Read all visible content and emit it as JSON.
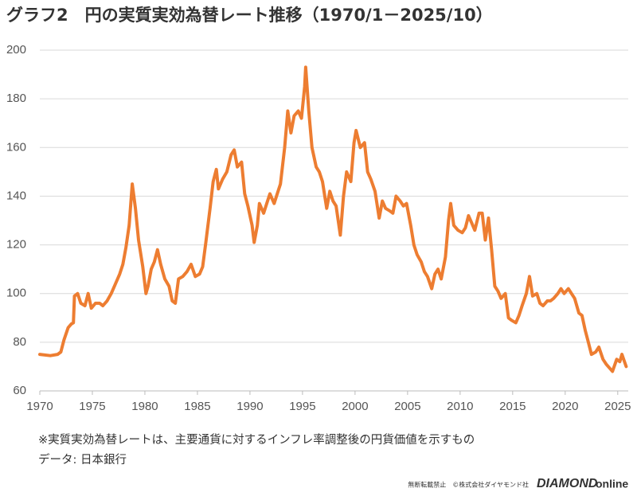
{
  "chart_data": {
    "type": "line",
    "title": "グラフ2　円の実質実効為替レート推移（1970/1－2025/10）",
    "notes": [
      "※実質実効為替レートは、主要通貨に対するインフレ率調整後の円貨価値を示すもの",
      "データ: 日本銀行"
    ],
    "color": "#ed7d31",
    "grid": true,
    "xlim": [
      1970,
      2026
    ],
    "xticks": [
      1970,
      1975,
      1980,
      1985,
      1990,
      1995,
      2000,
      2005,
      2010,
      2015,
      2020,
      2025
    ],
    "ylim": [
      60,
      200
    ],
    "yticks": [
      60,
      80,
      100,
      120,
      140,
      160,
      180,
      200
    ],
    "x": [
      1970,
      1971,
      1971.7,
      1972,
      1972.3,
      1972.7,
      1973,
      1973.2,
      1973.3,
      1973.6,
      1973.9,
      1974.3,
      1974.6,
      1974.9,
      1975.3,
      1975.7,
      1976,
      1976.4,
      1976.8,
      1977.2,
      1977.6,
      1977.9,
      1978.2,
      1978.5,
      1978.8,
      1979.1,
      1979.4,
      1979.8,
      1980.1,
      1980.3,
      1980.6,
      1980.9,
      1981.2,
      1981.5,
      1981.9,
      1982.3,
      1982.6,
      1982.9,
      1983.2,
      1983.6,
      1984,
      1984.4,
      1984.8,
      1985.2,
      1985.5,
      1985.8,
      1986.2,
      1986.5,
      1986.8,
      1987,
      1987.4,
      1987.8,
      1988.2,
      1988.5,
      1988.8,
      1989.2,
      1989.5,
      1989.8,
      1990.2,
      1990.4,
      1990.7,
      1990.9,
      1991.3,
      1991.6,
      1991.9,
      1992.3,
      1992.6,
      1992.9,
      1993.3,
      1993.6,
      1993.9,
      1994.2,
      1994.6,
      1994.9,
      1995.2,
      1995.3,
      1995.6,
      1995.9,
      1996.3,
      1996.6,
      1996.9,
      1997.3,
      1997.6,
      1997.9,
      1998.2,
      1998.6,
      1998.9,
      1999.2,
      1999.6,
      1999.9,
      2000.1,
      2000.5,
      2000.9,
      2001.2,
      2001.5,
      2001.9,
      2002.3,
      2002.6,
      2002.9,
      2003.3,
      2003.6,
      2003.9,
      2004.3,
      2004.6,
      2004.9,
      2005.3,
      2005.6,
      2005.9,
      2006.3,
      2006.6,
      2006.9,
      2007.3,
      2007.6,
      2007.9,
      2008.2,
      2008.6,
      2008.9,
      2009.1,
      2009.4,
      2009.8,
      2010.2,
      2010.5,
      2010.8,
      2011.1,
      2011.4,
      2011.8,
      2012.1,
      2012.4,
      2012.7,
      2013,
      2013.3,
      2013.6,
      2013.9,
      2014.3,
      2014.6,
      2014.9,
      2015.3,
      2015.6,
      2015.9,
      2016.3,
      2016.6,
      2016.9,
      2017.3,
      2017.6,
      2017.9,
      2018.3,
      2018.6,
      2018.9,
      2019.3,
      2019.6,
      2019.9,
      2020.3,
      2020.6,
      2020.9,
      2021.3,
      2021.6,
      2021.9,
      2022.2,
      2022.5,
      2022.9,
      2023.2,
      2023.6,
      2023.9,
      2024.3,
      2024.5,
      2024.9,
      2025.2,
      2025.4,
      2025.8
    ],
    "values": [
      75,
      74.5,
      75,
      76,
      81,
      86,
      87.5,
      88,
      99,
      100,
      96,
      95,
      100,
      94,
      96,
      96,
      95,
      97,
      100,
      104,
      108,
      112,
      119,
      128,
      145,
      135,
      122,
      111,
      100,
      103,
      110,
      113,
      118,
      112,
      106,
      103,
      97,
      96,
      106,
      107,
      109,
      112,
      107,
      108,
      111,
      121,
      135,
      146,
      151,
      143,
      147,
      150,
      157,
      159,
      152,
      154,
      141,
      136,
      128,
      121,
      128,
      137,
      133,
      137,
      141,
      137,
      141,
      145,
      160,
      175,
      166,
      173,
      175,
      172,
      185,
      193,
      175,
      160,
      152,
      150,
      146,
      135,
      142,
      138,
      136,
      124,
      140,
      150,
      146,
      162,
      167,
      160,
      162,
      150,
      147,
      142,
      131,
      138,
      135,
      134,
      133,
      140,
      138,
      136,
      137,
      128,
      120,
      116,
      113,
      109,
      107,
      102,
      108,
      110,
      106,
      115,
      130,
      137,
      128,
      126,
      125,
      127,
      132,
      129,
      126,
      133,
      133,
      122,
      131,
      118,
      103,
      101,
      98,
      100,
      90,
      89,
      88,
      91,
      95,
      100,
      107,
      99,
      100,
      96,
      95,
      97,
      97,
      98,
      100,
      102,
      100,
      102,
      100,
      98,
      92,
      91,
      85,
      80,
      75,
      76,
      78,
      73,
      71,
      69,
      68,
      73,
      72,
      75,
      70
    ]
  },
  "footer": {
    "copyright": "無断転載禁止　©株式会社ダイヤモンド社",
    "logo_main": "DIAMOND",
    "logo_sub": "online"
  }
}
